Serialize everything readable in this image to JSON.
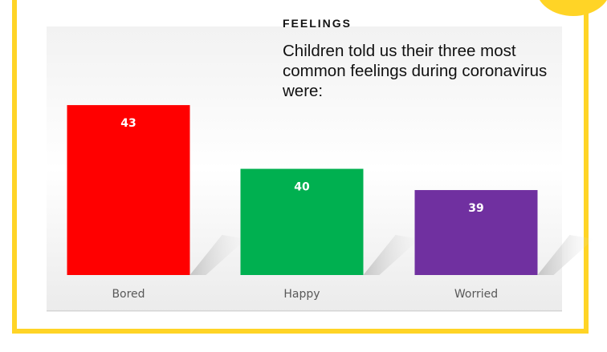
{
  "colors": {
    "frame": "#FFD426",
    "text": "#111111"
  },
  "heading": "FEELINGS",
  "subtitle": "Children  told us their three most\ncommon feelings during coronavirus\nwere:",
  "chart_data": {
    "type": "bar",
    "categories": [
      "Bored",
      "Happy",
      "Worried"
    ],
    "values": [
      43,
      40,
      39
    ],
    "colors": [
      "#FF0000",
      "#00B050",
      "#7030A0"
    ],
    "data_labels": [
      "43",
      "40",
      "39"
    ],
    "ylim": [
      35,
      44.4
    ],
    "grid": false,
    "legend": "none"
  }
}
